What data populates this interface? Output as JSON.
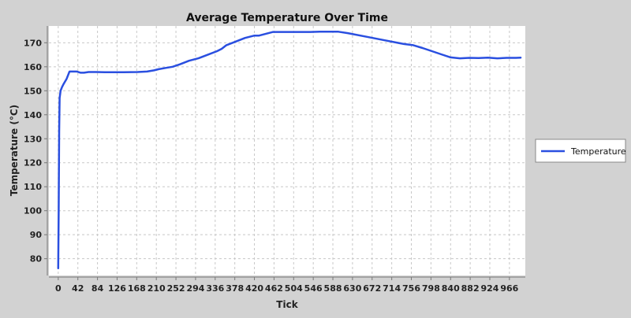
{
  "chart_data": {
    "type": "line",
    "title": "Average Temperature Over Time",
    "xlabel": "Tick",
    "ylabel": "Temperature (°C)",
    "xlim": [
      -20,
      1000
    ],
    "ylim": [
      73,
      177
    ],
    "x_ticks": [
      0,
      42,
      84,
      126,
      168,
      210,
      252,
      294,
      336,
      378,
      420,
      462,
      504,
      546,
      588,
      630,
      672,
      714,
      756,
      798,
      840,
      882,
      924,
      966
    ],
    "y_ticks": [
      80,
      90,
      100,
      110,
      120,
      130,
      140,
      150,
      160,
      170
    ],
    "grid": true,
    "legend": "right",
    "colors": {
      "line": "#2a4fe0",
      "plot_bg": "#ffffff",
      "page_bg": "#d2d2d2",
      "grid": "#c8c8c8"
    },
    "series": [
      {
        "name": "Temperature",
        "x": [
          0,
          1,
          2,
          3,
          5,
          8,
          12,
          18,
          24,
          30,
          40,
          48,
          55,
          65,
          80,
          100,
          120,
          140,
          170,
          190,
          205,
          215,
          230,
          245,
          260,
          280,
          300,
          320,
          340,
          350,
          360,
          380,
          400,
          420,
          430,
          460,
          500,
          540,
          560,
          580,
          600,
          620,
          660,
          700,
          740,
          760,
          780,
          800,
          820,
          840,
          860,
          880,
          900,
          920,
          940,
          960,
          980,
          990
        ],
        "values": [
          76,
          100,
          133,
          147,
          150,
          151.5,
          153,
          155,
          158,
          158,
          158,
          157.5,
          157.5,
          157.8,
          157.8,
          157.7,
          157.7,
          157.7,
          157.8,
          158,
          158.5,
          159,
          159.5,
          160,
          161,
          162.5,
          163.5,
          165,
          166.5,
          167.5,
          169,
          170.5,
          172,
          173,
          173,
          174.5,
          174.5,
          174.5,
          174.6,
          174.6,
          174.6,
          174,
          172.5,
          171,
          169.5,
          169,
          167.8,
          166.5,
          165.2,
          163.9,
          163.5,
          163.7,
          163.6,
          163.8,
          163.5,
          163.7,
          163.7,
          163.8
        ]
      }
    ]
  }
}
